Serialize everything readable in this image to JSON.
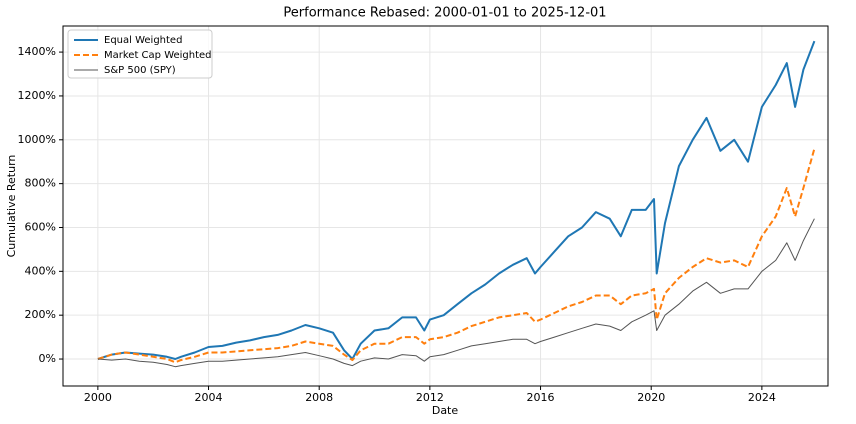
{
  "chart_data": {
    "type": "line",
    "title": "Performance Rebased: 2000-01-01 to 2025-12-01",
    "xlabel": "Date",
    "ylabel": "Cumulative Return",
    "x": [
      2000,
      2000.5,
      2001,
      2001.5,
      2002,
      2002.5,
      2002.8,
      2003,
      2003.5,
      2004,
      2004.5,
      2005,
      2005.5,
      2006,
      2006.5,
      2007,
      2007.5,
      2008,
      2008.5,
      2008.9,
      2009.2,
      2009.5,
      2010,
      2010.5,
      2011,
      2011.5,
      2011.8,
      2012,
      2012.5,
      2013,
      2013.5,
      2014,
      2014.5,
      2015,
      2015.5,
      2015.8,
      2016,
      2016.5,
      2017,
      2017.5,
      2018,
      2018.5,
      2018.9,
      2019.3,
      2019.8,
      2020.1,
      2020.2,
      2020.5,
      2021,
      2021.5,
      2022,
      2022.5,
      2023,
      2023.5,
      2024,
      2024.5,
      2024.9,
      2025.2,
      2025.5,
      2025.9
    ],
    "series": [
      {
        "name": "Equal Weighted",
        "color": "#1f77b4",
        "linestyle": "solid",
        "linewidth": 2,
        "values": [
          0,
          20,
          30,
          25,
          20,
          10,
          0,
          10,
          30,
          55,
          60,
          75,
          85,
          100,
          110,
          130,
          155,
          140,
          120,
          40,
          0,
          70,
          130,
          140,
          190,
          190,
          130,
          180,
          200,
          250,
          300,
          340,
          390,
          430,
          460,
          390,
          420,
          490,
          560,
          600,
          670,
          640,
          560,
          680,
          680,
          730,
          390,
          620,
          880,
          1000,
          1100,
          950,
          1000,
          900,
          1150,
          1250,
          1350,
          1150,
          1320,
          1450
        ]
      },
      {
        "name": "Market Cap Weighted",
        "color": "#ff7f0e",
        "linestyle": "dashed",
        "linewidth": 2,
        "values": [
          0,
          20,
          30,
          20,
          10,
          0,
          -15,
          -5,
          10,
          30,
          30,
          35,
          40,
          45,
          50,
          60,
          80,
          70,
          60,
          20,
          -5,
          40,
          70,
          70,
          100,
          100,
          70,
          90,
          100,
          120,
          150,
          170,
          190,
          200,
          210,
          170,
          180,
          210,
          240,
          260,
          290,
          290,
          250,
          290,
          300,
          320,
          180,
          300,
          370,
          420,
          460,
          440,
          450,
          420,
          560,
          650,
          780,
          650,
          780,
          960
        ]
      },
      {
        "name": "S&P 500 (SPY)",
        "color": "#555555",
        "linestyle": "solid",
        "linewidth": 1,
        "values": [
          0,
          -5,
          0,
          -10,
          -15,
          -25,
          -35,
          -30,
          -20,
          -10,
          -10,
          -5,
          0,
          5,
          10,
          20,
          30,
          15,
          0,
          -20,
          -30,
          -10,
          5,
          0,
          20,
          15,
          -10,
          10,
          20,
          40,
          60,
          70,
          80,
          90,
          90,
          70,
          80,
          100,
          120,
          140,
          160,
          150,
          130,
          170,
          200,
          220,
          130,
          200,
          250,
          310,
          350,
          300,
          320,
          320,
          400,
          450,
          530,
          450,
          540,
          640
        ]
      }
    ],
    "xlim": [
      1998.74,
      2026.39
    ],
    "xticks": [
      2000,
      2004,
      2008,
      2012,
      2016,
      2020,
      2024
    ],
    "ylim": [
      -123,
      1519
    ],
    "yticks": [
      {
        "value": 0,
        "label": "0%"
      },
      {
        "value": 200,
        "label": "200%"
      },
      {
        "value": 400,
        "label": "400%"
      },
      {
        "value": 600,
        "label": "600%"
      },
      {
        "value": 800,
        "label": "800%"
      },
      {
        "value": 1000,
        "label": "1000%"
      },
      {
        "value": 1200,
        "label": "1200%"
      },
      {
        "value": 1400,
        "label": "1400%"
      }
    ],
    "grid": true,
    "legend": "upper left"
  }
}
